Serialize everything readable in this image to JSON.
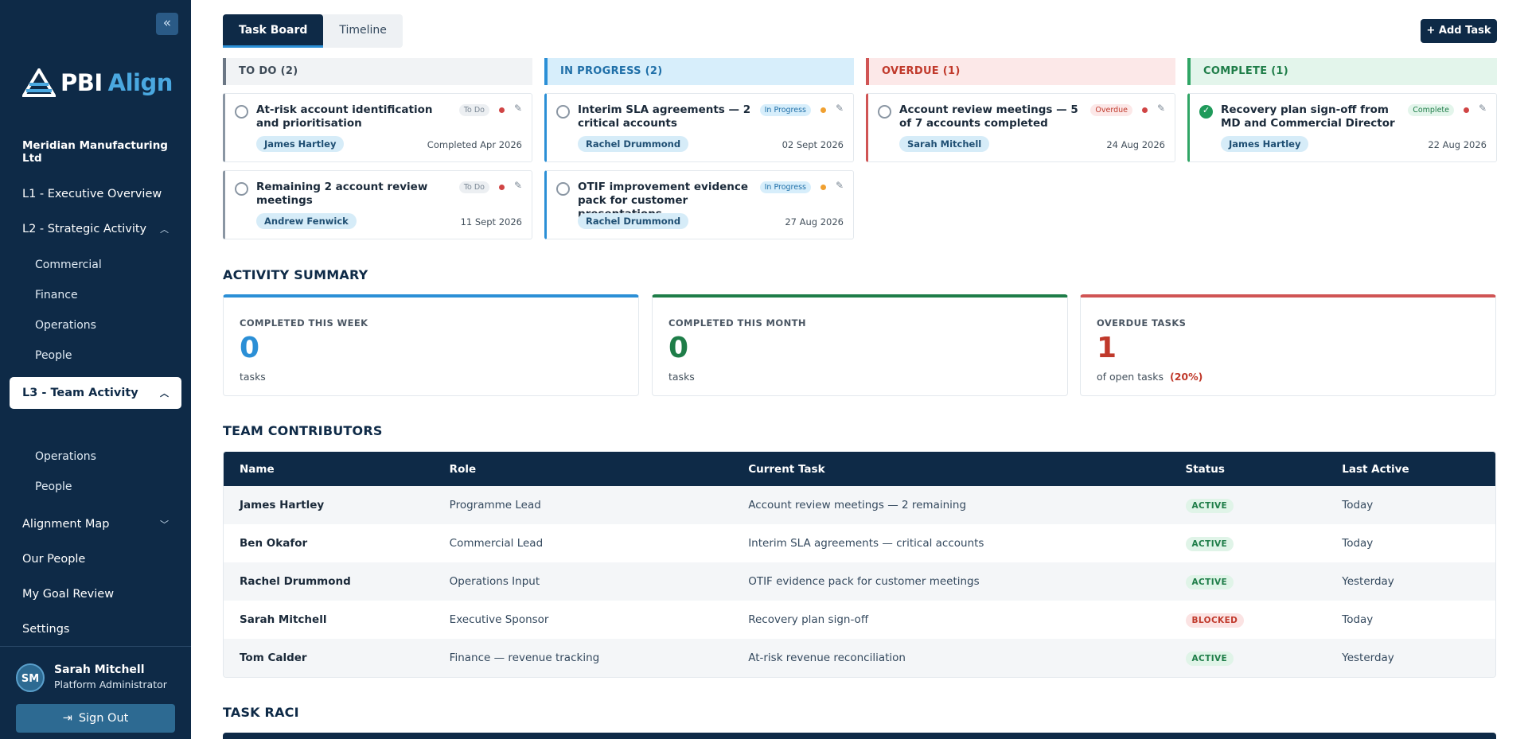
{
  "brand": {
    "name_a": "PBI",
    "name_b": "Align"
  },
  "org": "Meridian Manufacturing Ltd",
  "nav": {
    "l1": "L1 - Executive Overview",
    "l2": "L2 - Strategic Activity",
    "l2_sub": [
      "Commercial",
      "Finance",
      "Operations",
      "People"
    ],
    "l3": "L3 - Team Activity",
    "l3_sub": [
      "Operations",
      "People"
    ],
    "alignment": "Alignment Map",
    "our_people": "Our People",
    "goal_review": "My Goal Review",
    "settings": "Settings"
  },
  "user": {
    "initials": "SM",
    "name": "Sarah Mitchell",
    "role": "Platform Administrator",
    "signout": "Sign Out"
  },
  "tabs": [
    "Task Board",
    "Timeline"
  ],
  "add_task": "+ Add Task",
  "columns": [
    {
      "title": "TO DO (2)",
      "color": "#6b7785",
      "bg": "#f1f3f5",
      "text": "#3d4a57"
    },
    {
      "title": "IN PROGRESS (2)",
      "color": "#2b8fd6",
      "bg": "#d7eefb",
      "text": "#1f6fa8"
    },
    {
      "title": "OVERDUE (1)",
      "color": "#d05454",
      "bg": "#fce8e8",
      "text": "#c0392b"
    },
    {
      "title": "COMPLETE (1)",
      "color": "#2fa565",
      "bg": "#e3f5eb",
      "text": "#1e7d48"
    }
  ],
  "cards": [
    {
      "title": "At-risk account identification and prioritisation",
      "badge": "To Do",
      "owner": "James Hartley",
      "date": "Completed Apr 2026"
    },
    {
      "title": "Remaining 2 account review meetings",
      "badge": "To Do",
      "owner": "Andrew Fenwick",
      "date": "11 Sept 2026"
    },
    {
      "title": "Interim SLA agreements — 2 critical accounts",
      "badge": "In Progress",
      "owner": "Rachel Drummond",
      "date": "02 Sept 2026"
    },
    {
      "title": "OTIF improvement evidence pack for customer presentations",
      "badge": "In Progress",
      "owner": "Rachel Drummond",
      "date": "27 Aug 2026"
    },
    {
      "title": "Account review meetings — 5 of 7 accounts completed",
      "badge": "Overdue",
      "owner": "Sarah Mitchell",
      "date": "24 Aug 2026"
    },
    {
      "title": "Recovery plan sign-off from MD and Commercial Director",
      "badge": "Complete",
      "owner": "James Hartley",
      "date": "22 Aug 2026"
    }
  ],
  "activity": {
    "title": "ACTIVITY SUMMARY",
    "week": {
      "label": "COMPLETED THIS WEEK",
      "value": "0",
      "sub": "tasks"
    },
    "month": {
      "label": "COMPLETED THIS MONTH",
      "value": "0",
      "sub": "tasks"
    },
    "overdue": {
      "label": "OVERDUE TASKS",
      "value": "1",
      "sub": "of open tasks",
      "pct": "(20%)"
    }
  },
  "contributors": {
    "title": "TEAM CONTRIBUTORS",
    "headers": [
      "Name",
      "Role",
      "Current Task",
      "Status",
      "Last Active"
    ],
    "rows": [
      {
        "name": "James Hartley",
        "role": "Programme Lead",
        "task": "Account review meetings — 2 remaining",
        "status": "ACTIVE",
        "last": "Today"
      },
      {
        "name": "Ben Okafor",
        "role": "Commercial Lead",
        "task": "Interim SLA agreements — critical accounts",
        "status": "ACTIVE",
        "last": "Today"
      },
      {
        "name": "Rachel Drummond",
        "role": "Operations Input",
        "task": "OTIF evidence pack for customer meetings",
        "status": "ACTIVE",
        "last": "Yesterday"
      },
      {
        "name": "Sarah Mitchell",
        "role": "Executive Sponsor",
        "task": "Recovery plan sign-off",
        "status": "BLOCKED",
        "last": "Today"
      },
      {
        "name": "Tom Calder",
        "role": "Finance — revenue tracking",
        "task": "At-risk revenue reconciliation",
        "status": "ACTIVE",
        "last": "Yesterday"
      }
    ]
  },
  "raci_title": "TASK RACI"
}
